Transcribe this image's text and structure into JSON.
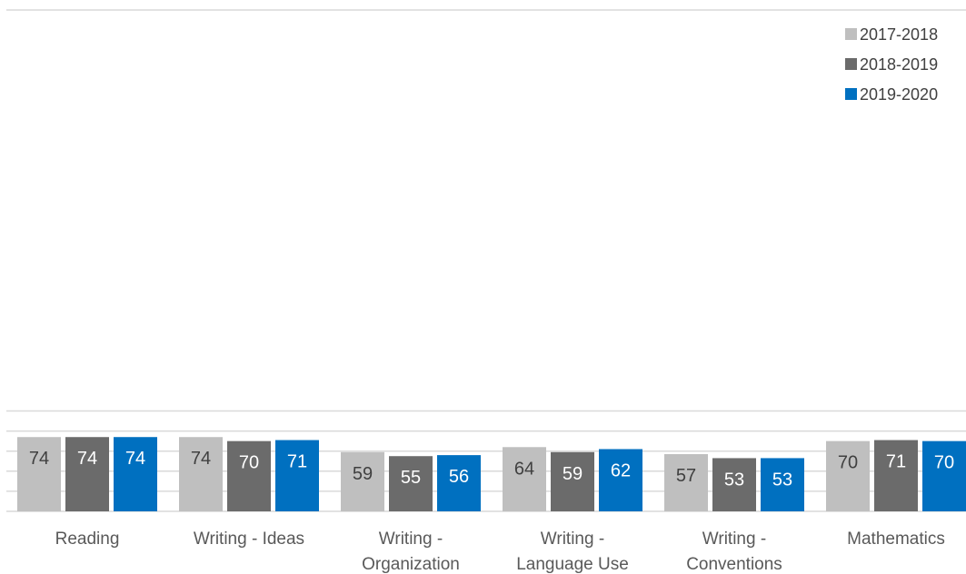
{
  "chart_data": {
    "type": "bar",
    "categories": [
      [
        "Reading"
      ],
      [
        "Writing - Ideas"
      ],
      [
        "Writing -",
        "Organization"
      ],
      [
        "Writing -",
        "Language Use"
      ],
      [
        "Writing -",
        "Conventions"
      ],
      [
        "Mathematics"
      ]
    ],
    "series": [
      {
        "name": "2017-2018",
        "color": "#bfbfbf",
        "label_color": "#404040",
        "values": [
          74,
          74,
          59,
          64,
          57,
          70
        ]
      },
      {
        "name": "2018-2019",
        "color": "#6b6b6b",
        "label_color": "#ffffff",
        "values": [
          74,
          70,
          55,
          59,
          53,
          71
        ]
      },
      {
        "name": "2019-2020",
        "color": "#0070c0",
        "label_color": "#ffffff",
        "values": [
          74,
          71,
          56,
          62,
          53,
          70
        ]
      }
    ],
    "title": "",
    "xlabel": "",
    "ylabel": "",
    "ylim": [
      0,
      100
    ],
    "grid": true,
    "legend_position": "top-right",
    "data_labels": "inside-end"
  }
}
